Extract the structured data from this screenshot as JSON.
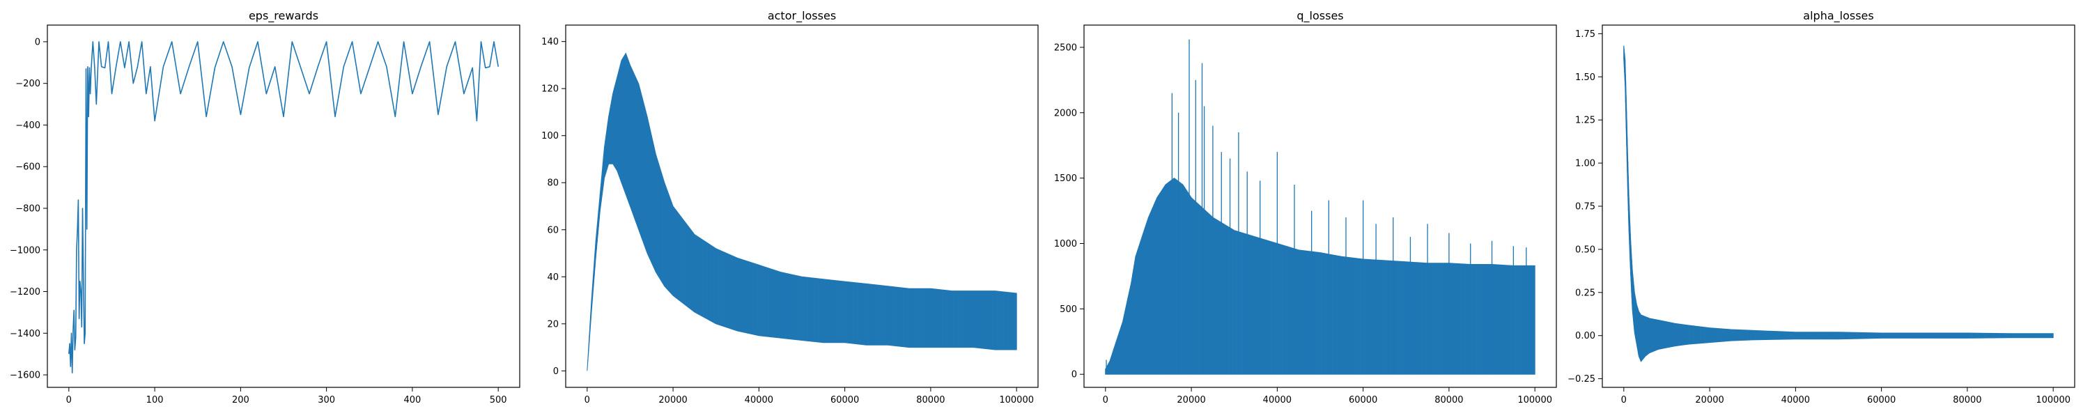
{
  "figure": {
    "background": "#ffffff",
    "line_color": "#1f77b4"
  },
  "chart_data": [
    {
      "type": "line",
      "title": "eps_rewards",
      "xlabel": "",
      "ylabel": "",
      "xlim": [
        -25,
        525
      ],
      "ylim": [
        -1660,
        80
      ],
      "xticks": [
        0,
        100,
        200,
        300,
        400,
        500
      ],
      "xtick_labels": [
        "0",
        "100",
        "200",
        "300",
        "400",
        "500"
      ],
      "yticks": [
        0,
        -200,
        -400,
        -600,
        -800,
        -1000,
        -1200,
        -1400,
        -1600
      ],
      "ytick_labels": [
        "0",
        "−200",
        "−400",
        "−600",
        "−800",
        "−1000",
        "−1200",
        "−1400",
        "−1600"
      ],
      "grid": false,
      "series": [
        {
          "color": "#1f77b4",
          "x": [
            0,
            1,
            2,
            3,
            4,
            5,
            6,
            7,
            8,
            9,
            10,
            11,
            12,
            13,
            14,
            15,
            16,
            17,
            18,
            19,
            20,
            21,
            22,
            23,
            24,
            25,
            26,
            28,
            30,
            32,
            35,
            38,
            42,
            46,
            50,
            55,
            60,
            65,
            70,
            75,
            80,
            85,
            90,
            95,
            100,
            110,
            120,
            130,
            140,
            150,
            160,
            170,
            180,
            190,
            200,
            210,
            220,
            230,
            240,
            250,
            260,
            270,
            280,
            290,
            300,
            310,
            320,
            330,
            340,
            350,
            360,
            370,
            380,
            390,
            400,
            410,
            420,
            430,
            440,
            450,
            460,
            470,
            475,
            480,
            485,
            490,
            495,
            500
          ],
          "y": [
            -1500,
            -1450,
            -1560,
            -1400,
            -1590,
            -1380,
            -1290,
            -1480,
            -1420,
            -1000,
            -910,
            -760,
            -1330,
            -1150,
            -1200,
            -1370,
            -800,
            -1150,
            -1450,
            -1400,
            -130,
            -900,
            -120,
            -360,
            -125,
            -250,
            -130,
            0,
            -120,
            -300,
            0,
            -120,
            -125,
            0,
            -250,
            -120,
            0,
            -125,
            0,
            -200,
            -120,
            0,
            -250,
            -120,
            -380,
            -120,
            0,
            -250,
            -120,
            0,
            -360,
            -125,
            0,
            -120,
            -350,
            -125,
            0,
            -250,
            -120,
            -360,
            0,
            -125,
            -250,
            -120,
            0,
            -360,
            -120,
            0,
            -250,
            -125,
            0,
            -120,
            -360,
            0,
            -250,
            -120,
            0,
            -350,
            -120,
            0,
            -250,
            -125,
            -380,
            0,
            -125,
            -120,
            0,
            -120
          ]
        }
      ]
    },
    {
      "type": "line",
      "title": "actor_losses",
      "xlabel": "",
      "ylabel": "",
      "xlim": [
        -5000,
        105000
      ],
      "ylim": [
        -7,
        147
      ],
      "xticks": [
        0,
        20000,
        40000,
        60000,
        80000,
        100000
      ],
      "xtick_labels": [
        "0",
        "20000",
        "40000",
        "60000",
        "80000",
        "100000"
      ],
      "yticks": [
        0,
        20,
        40,
        60,
        80,
        100,
        120,
        140
      ],
      "ytick_labels": [
        "0",
        "20",
        "40",
        "60",
        "80",
        "100",
        "120",
        "140"
      ],
      "grid": false,
      "series": [
        {
          "color": "#1f77b4",
          "x": [
            0,
            1000,
            2000,
            3000,
            4000,
            5000,
            6000,
            7000,
            8000,
            9000,
            10000,
            12000,
            14000,
            16000,
            18000,
            20000,
            25000,
            30000,
            35000,
            40000,
            45000,
            50000,
            55000,
            60000,
            65000,
            70000,
            75000,
            80000,
            85000,
            90000,
            95000,
            100000
          ],
          "upper": [
            0,
            30,
            55,
            75,
            95,
            108,
            118,
            125,
            132,
            135,
            130,
            122,
            108,
            92,
            80,
            70,
            58,
            52,
            48,
            45,
            42,
            40,
            39,
            38,
            37,
            36,
            35,
            35,
            34,
            34,
            34,
            33
          ],
          "lower": [
            0,
            25,
            48,
            68,
            82,
            88,
            88,
            85,
            80,
            75,
            70,
            60,
            50,
            42,
            36,
            32,
            25,
            20,
            17,
            15,
            14,
            13,
            12,
            12,
            11,
            11,
            10,
            10,
            10,
            10,
            9,
            9
          ]
        }
      ]
    },
    {
      "type": "line",
      "title": "q_losses",
      "xlabel": "",
      "ylabel": "",
      "xlim": [
        -5000,
        105000
      ],
      "ylim": [
        -100,
        2670
      ],
      "xticks": [
        0,
        20000,
        40000,
        60000,
        80000,
        100000
      ],
      "xtick_labels": [
        "0",
        "20000",
        "40000",
        "60000",
        "80000",
        "100000"
      ],
      "yticks": [
        0,
        500,
        1000,
        1500,
        2000,
        2500
      ],
      "ytick_labels": [
        "0",
        "500",
        "1000",
        "1500",
        "2000",
        "2500"
      ],
      "grid": false,
      "series": [
        {
          "color": "#1f77b4",
          "x": [
            0,
            1000,
            2000,
            3000,
            4000,
            5000,
            6000,
            7000,
            8000,
            9000,
            10000,
            12000,
            14000,
            16000,
            18000,
            20000,
            25000,
            30000,
            35000,
            40000,
            45000,
            50000,
            55000,
            60000,
            65000,
            70000,
            75000,
            80000,
            85000,
            90000,
            95000,
            100000
          ],
          "upper": [
            40,
            100,
            200,
            300,
            400,
            550,
            700,
            900,
            1000,
            1100,
            1200,
            1350,
            1450,
            1500,
            1450,
            1350,
            1200,
            1100,
            1050,
            1000,
            950,
            930,
            900,
            880,
            870,
            860,
            850,
            850,
            840,
            840,
            830,
            830
          ],
          "lower": [
            0,
            0,
            0,
            0,
            0,
            0,
            0,
            0,
            0,
            0,
            0,
            0,
            0,
            0,
            0,
            0,
            0,
            0,
            0,
            0,
            0,
            0,
            0,
            0,
            0,
            0,
            0,
            0,
            0,
            0,
            0,
            0
          ],
          "spikes": [
            [
              200,
              110
            ],
            [
              15500,
              2150
            ],
            [
              17000,
              2000
            ],
            [
              19500,
              2560
            ],
            [
              21000,
              2250
            ],
            [
              22500,
              2380
            ],
            [
              23000,
              2050
            ],
            [
              25000,
              1900
            ],
            [
              27000,
              1700
            ],
            [
              29000,
              1650
            ],
            [
              31000,
              1850
            ],
            [
              33000,
              1550
            ],
            [
              36000,
              1480
            ],
            [
              40000,
              1700
            ],
            [
              44000,
              1450
            ],
            [
              48000,
              1250
            ],
            [
              52000,
              1330
            ],
            [
              56000,
              1200
            ],
            [
              60000,
              1330
            ],
            [
              63000,
              1150
            ],
            [
              67000,
              1200
            ],
            [
              71000,
              1050
            ],
            [
              75000,
              1150
            ],
            [
              80000,
              1080
            ],
            [
              85000,
              1000
            ],
            [
              90000,
              1020
            ],
            [
              95000,
              980
            ],
            [
              98000,
              970
            ]
          ]
        }
      ]
    },
    {
      "type": "line",
      "title": "alpha_losses",
      "xlabel": "",
      "ylabel": "",
      "xlim": [
        -5000,
        105000
      ],
      "ylim": [
        -0.3,
        1.8
      ],
      "xticks": [
        0,
        20000,
        40000,
        60000,
        80000,
        100000
      ],
      "xtick_labels": [
        "0",
        "20000",
        "40000",
        "60000",
        "80000",
        "100000"
      ],
      "yticks": [
        1.75,
        1.5,
        1.25,
        1.0,
        0.75,
        0.5,
        0.25,
        0.0,
        -0.25
      ],
      "ytick_labels": [
        "1.75",
        "1.50",
        "1.25",
        "1.00",
        "0.75",
        "0.50",
        "0.25",
        "0.00",
        "−0.25"
      ],
      "grid": false,
      "series": [
        {
          "color": "#1f77b4",
          "x": [
            0,
            300,
            600,
            900,
            1200,
            1600,
            2000,
            2500,
            3000,
            3500,
            4000,
            5000,
            6000,
            8000,
            10000,
            12000,
            15000,
            20000,
            25000,
            30000,
            40000,
            50000,
            60000,
            70000,
            80000,
            90000,
            100000
          ],
          "upper": [
            1.68,
            1.6,
            1.35,
            1.05,
            0.8,
            0.55,
            0.38,
            0.25,
            0.18,
            0.14,
            0.12,
            0.11,
            0.1,
            0.09,
            0.08,
            0.07,
            0.06,
            0.045,
            0.035,
            0.03,
            0.02,
            0.02,
            0.015,
            0.015,
            0.015,
            0.012,
            0.012
          ],
          "lower": [
            1.6,
            1.45,
            1.15,
            0.85,
            0.6,
            0.35,
            0.15,
            0.02,
            -0.05,
            -0.12,
            -0.15,
            -0.12,
            -0.1,
            -0.08,
            -0.07,
            -0.06,
            -0.05,
            -0.04,
            -0.03,
            -0.025,
            -0.02,
            -0.02,
            -0.015,
            -0.015,
            -0.015,
            -0.012,
            -0.012
          ]
        }
      ]
    }
  ]
}
